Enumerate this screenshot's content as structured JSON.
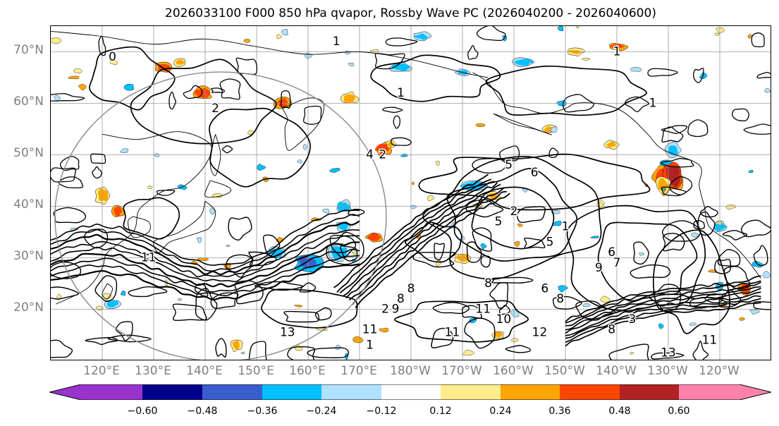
{
  "title": "2026033100 F000 850 hPa qvapor, Rossby Wave PC (2026040200 - 2026040600)",
  "latitude_labels": [
    "70°N",
    "60°N",
    "50°N",
    "40°N",
    "30°N",
    "20°N"
  ],
  "longitude_labels": [
    "120°E",
    "130°E",
    "140°E",
    "150°E",
    "160°E",
    "170°E",
    "180°W",
    "170°W",
    "160°W",
    "150°W",
    "140°W",
    "130°W",
    "120°W"
  ],
  "colorbar": {
    "colors": [
      "#9a32cd",
      "#00008b",
      "#3a5fcd",
      "#00bfff",
      "#b0e2ff",
      "#ffffff",
      "#ffec8b",
      "#ffa500",
      "#ff4500",
      "#b22222",
      "#ff82ab"
    ],
    "tick_labels": [
      "−0.60",
      "−0.48",
      "−0.36",
      "−0.24",
      "−0.12",
      "0.12",
      "0.24",
      "0.36",
      "0.48",
      "0.60"
    ]
  },
  "contour_labels": [
    {
      "text": "1",
      "lon": 165.5,
      "lat": 72
    },
    {
      "text": "1",
      "lon": -140,
      "lat": 70
    },
    {
      "text": "0",
      "lon": 122,
      "lat": 69
    },
    {
      "text": "1",
      "lon": 178,
      "lat": 62
    },
    {
      "text": "1",
      "lon": -133,
      "lat": 60
    },
    {
      "text": "2",
      "lon": 142,
      "lat": 59
    },
    {
      "text": "4",
      "lon": 172,
      "lat": 50
    },
    {
      "text": "2",
      "lon": 174.5,
      "lat": 50
    },
    {
      "text": "5",
      "lon": -161,
      "lat": 48
    },
    {
      "text": "6",
      "lon": -156,
      "lat": 46.5
    },
    {
      "text": "2",
      "lon": -160,
      "lat": 39
    },
    {
      "text": "5",
      "lon": -163,
      "lat": 37
    },
    {
      "text": "1",
      "lon": -150,
      "lat": 36
    },
    {
      "text": "5",
      "lon": -153,
      "lat": 33
    },
    {
      "text": "6",
      "lon": -141,
      "lat": 31
    },
    {
      "text": "7",
      "lon": -140,
      "lat": 29
    },
    {
      "text": "6",
      "lon": -154,
      "lat": 24
    },
    {
      "text": "8",
      "lon": -151,
      "lat": 22
    },
    {
      "text": "11",
      "lon": -166,
      "lat": 20
    },
    {
      "text": "10",
      "lon": -162,
      "lat": 18
    },
    {
      "text": "11",
      "lon": -172,
      "lat": 15.5
    },
    {
      "text": "12",
      "lon": -155,
      "lat": 15.5
    },
    {
      "text": "8",
      "lon": -141,
      "lat": 16
    },
    {
      "text": "3",
      "lon": -137,
      "lat": 18
    },
    {
      "text": "13",
      "lon": -130,
      "lat": 11.5
    },
    {
      "text": "11",
      "lon": -122,
      "lat": 14
    },
    {
      "text": "8",
      "lon": 178,
      "lat": 22
    },
    {
      "text": "9",
      "lon": 177,
      "lat": 20
    },
    {
      "text": "8",
      "lon": 180,
      "lat": 24
    },
    {
      "text": "11",
      "lon": 129,
      "lat": 30
    },
    {
      "text": "13",
      "lon": 156,
      "lat": 15.5
    },
    {
      "text": "11",
      "lon": 172,
      "lat": 16
    },
    {
      "text": "1",
      "lon": 172,
      "lat": 13
    },
    {
      "text": "2",
      "lon": 175,
      "lat": 20
    },
    {
      "text": "9",
      "lon": -143.5,
      "lat": 28
    },
    {
      "text": "8",
      "lon": -165,
      "lat": 25
    }
  ]
}
